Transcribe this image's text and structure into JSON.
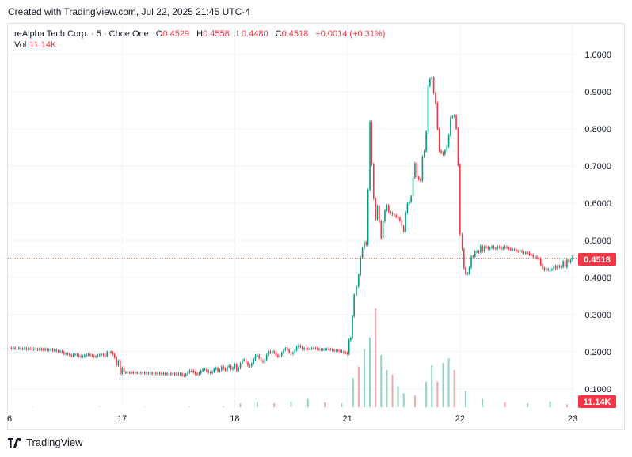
{
  "header": {
    "created_with": "Created with TradingView.com, Jul 22, 2025 21:45 UTC-4"
  },
  "legend": {
    "symbol": "reAlpha Tech Corp. · 5 · Cboe One",
    "open_label": "O",
    "open": "0.4529",
    "high_label": "H",
    "high": "0.4558",
    "low_label": "L",
    "low": "0.4480",
    "close_label": "C",
    "close": "0.4518",
    "change": "+0.0014 (+0.31%)",
    "vol_label": "Vol",
    "vol": "11.14K"
  },
  "price_badge": "0.4518",
  "volume_badge": "11.14K",
  "footer": {
    "brand": "TradingView"
  },
  "colors": {
    "up": "#089981",
    "down": "#f23645",
    "grid": "#f0f3fa"
  },
  "chart_data": {
    "type": "candlestick",
    "title": "reAlpha Tech Corp. · 5 · Cboe One",
    "y_ticks": [
      "0.1000",
      "0.2000",
      "0.3000",
      "0.4000",
      "0.5000",
      "0.6000",
      "0.7000",
      "0.8000",
      "0.9000",
      "1.0000"
    ],
    "y_tick_values": [
      0.1,
      0.2,
      0.3,
      0.4,
      0.5,
      0.6,
      0.7,
      0.8,
      0.9,
      1.0
    ],
    "ylim": [
      0.05,
      1.05
    ],
    "x_ticks": [
      "6",
      "17",
      "18",
      "21",
      "22",
      "23"
    ],
    "x_tick_values": [
      0,
      1,
      2,
      3,
      4,
      5
    ],
    "last_price": 0.4518,
    "grid": true,
    "series": [
      {
        "name": "price",
        "x": [
          0.0,
          0.4,
          0.55,
          0.85,
          0.9,
          1.0,
          1.5,
          1.8,
          2.0,
          2.3,
          2.6,
          2.9,
          3.0,
          3.03,
          3.06,
          3.1,
          3.15,
          3.2,
          3.25,
          3.3,
          3.35,
          3.4,
          3.45,
          3.5,
          3.55,
          3.6,
          3.65,
          3.7,
          3.75,
          3.8,
          3.85,
          3.9,
          3.95,
          4.0,
          4.02,
          4.05,
          4.1,
          4.2,
          4.4,
          4.6,
          4.7,
          4.75,
          4.8,
          4.9,
          5.0
        ],
        "close": [
          0.21,
          0.205,
          0.19,
          0.19,
          0.2,
          0.145,
          0.14,
          0.15,
          0.16,
          0.19,
          0.21,
          0.205,
          0.195,
          0.26,
          0.33,
          0.44,
          0.48,
          0.78,
          0.6,
          0.52,
          0.58,
          0.57,
          0.56,
          0.53,
          0.6,
          0.68,
          0.66,
          0.85,
          0.95,
          0.75,
          0.73,
          0.8,
          0.85,
          0.46,
          0.47,
          0.41,
          0.46,
          0.48,
          0.48,
          0.465,
          0.45,
          0.42,
          0.425,
          0.43,
          0.4518
        ]
      },
      {
        "name": "volume",
        "x": [
          0.2,
          0.8,
          1.2,
          1.6,
          1.9,
          2.05,
          2.2,
          2.35,
          2.5,
          2.65,
          2.8,
          2.95,
          3.05,
          3.1,
          3.15,
          3.2,
          3.25,
          3.3,
          3.35,
          3.4,
          3.45,
          3.5,
          3.6,
          3.7,
          3.75,
          3.8,
          3.85,
          3.9,
          3.95,
          4.05,
          4.2,
          4.4,
          4.6,
          4.8,
          4.95
        ],
        "values": [
          300,
          400,
          300,
          500,
          800,
          3000,
          4500,
          3500,
          5000,
          7000,
          4000,
          3000,
          25000,
          35000,
          50000,
          60000,
          85000,
          45000,
          32000,
          28000,
          18000,
          12000,
          10000,
          22000,
          36000,
          22000,
          38000,
          42000,
          32000,
          14000,
          7000,
          4000,
          3500,
          5000,
          2500
        ]
      }
    ]
  }
}
